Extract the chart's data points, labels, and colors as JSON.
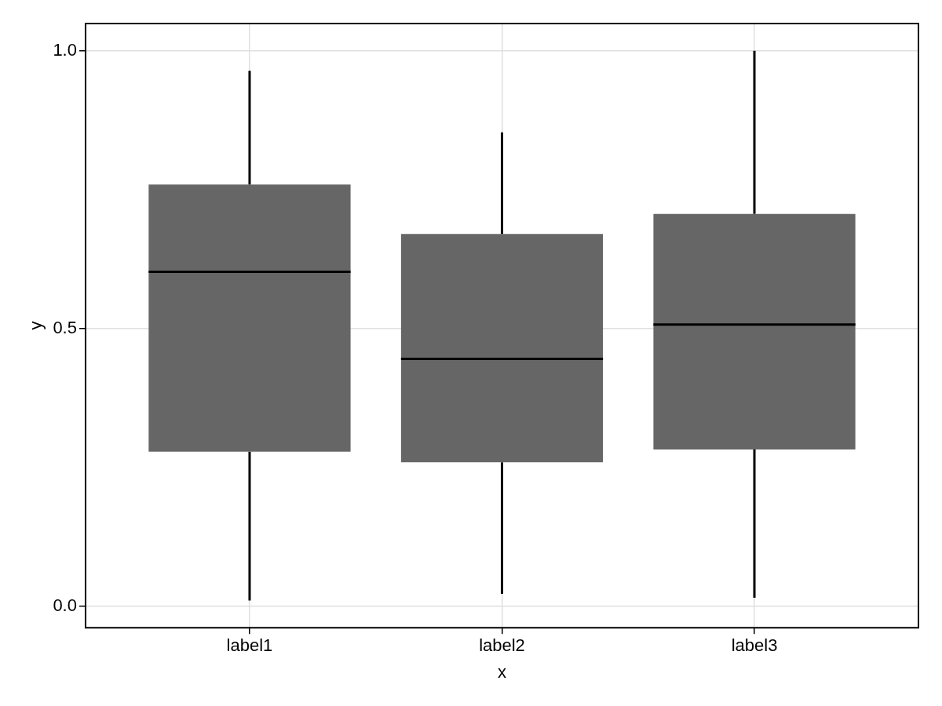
{
  "chart_data": {
    "type": "box",
    "xlabel": "x",
    "ylabel": "y",
    "categories": [
      "label1",
      "label2",
      "label3"
    ],
    "series": [
      {
        "color": "#666666",
        "boxes": [
          {
            "low": 0.01,
            "q1": 0.278,
            "median": 0.602,
            "q3": 0.759,
            "high": 0.964
          },
          {
            "low": 0.022,
            "q1": 0.259,
            "median": 0.445,
            "q3": 0.67,
            "high": 0.853
          },
          {
            "low": 0.015,
            "q1": 0.282,
            "median": 0.507,
            "q3": 0.706,
            "high": 1.0
          }
        ]
      }
    ],
    "ylim": [
      -0.039,
      1.049
    ],
    "yticks": [
      {
        "value": 0,
        "label": "0.0"
      },
      {
        "value": 0.5,
        "label": "0.5"
      },
      {
        "value": 1,
        "label": "1.0"
      }
    ],
    "grid": true,
    "legend": false
  }
}
